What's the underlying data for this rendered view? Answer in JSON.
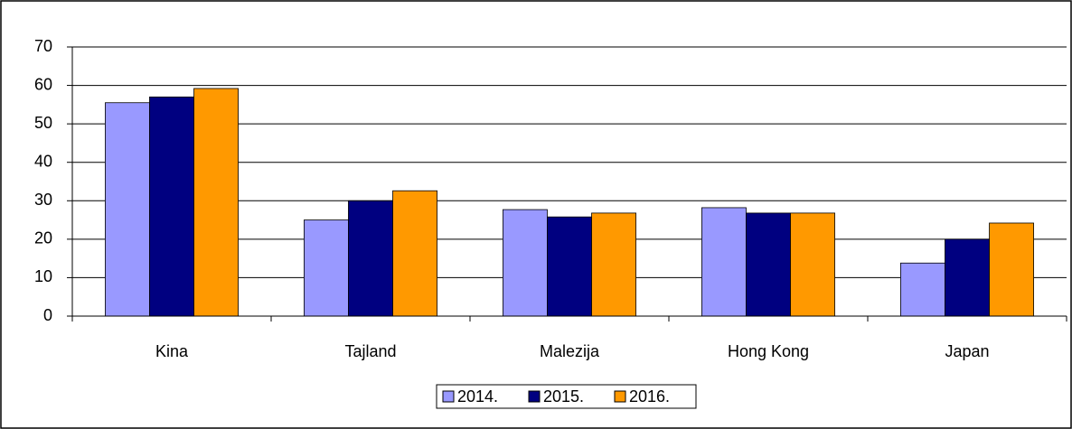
{
  "chart_data": {
    "type": "bar",
    "categories": [
      "Kina",
      "Tajland",
      "Malezija",
      "Hong Kong",
      "Japan"
    ],
    "series": [
      {
        "name": "2014.",
        "color": "#9999ff",
        "values": [
          55.5,
          25,
          27.7,
          28.2,
          13.8
        ]
      },
      {
        "name": "2015.",
        "color": "#000080",
        "values": [
          57,
          30,
          25.8,
          26.8,
          20
        ]
      },
      {
        "name": "2016.",
        "color": "#ff9900",
        "values": [
          59.2,
          32.6,
          26.8,
          26.8,
          24.2
        ]
      }
    ],
    "ylim": [
      0,
      70
    ],
    "yticks": [
      0,
      10,
      20,
      30,
      40,
      50,
      60,
      70
    ],
    "grid": true,
    "legend": "bottom"
  }
}
